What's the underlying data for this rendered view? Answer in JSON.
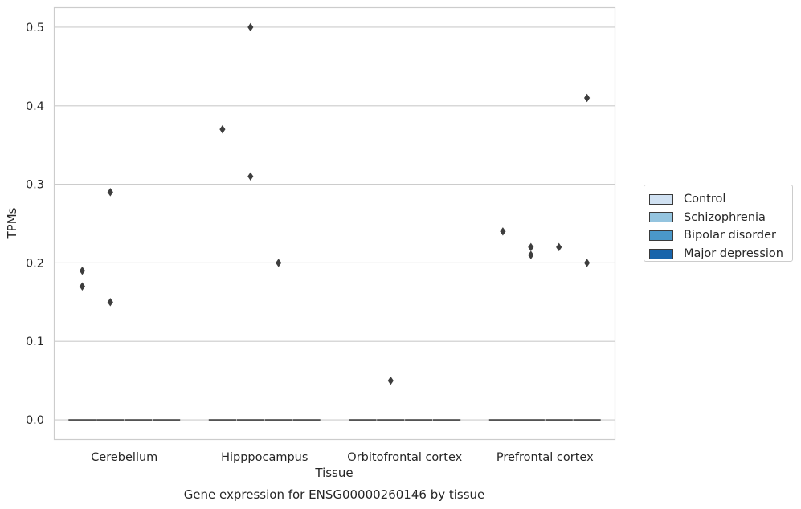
{
  "chart_data": {
    "type": "box",
    "title": "Gene expression for ENSG00000260146 by tissue",
    "xlabel": "Tissue",
    "ylabel": "TPMs",
    "ylim": [
      -0.025,
      0.525
    ],
    "yticks": [
      0.0,
      0.1,
      0.2,
      0.3,
      0.4,
      0.5
    ],
    "ytick_labels": [
      "0.0",
      "0.1",
      "0.2",
      "0.3",
      "0.4",
      "0.5"
    ],
    "grid": true,
    "legend_position": "right",
    "categories": [
      "Cerebellum",
      "Hipppocampus",
      "Orbitofrontal cortex",
      "Prefrontal cortex"
    ],
    "series": [
      {
        "name": "Control",
        "color": "#d0e1f2",
        "median": [
          0,
          0,
          0,
          0
        ],
        "outliers": [
          [
            0.17,
            0.19
          ],
          [
            0.37
          ],
          [],
          [
            0.24
          ]
        ]
      },
      {
        "name": "Schizophrenia",
        "color": "#94c4df",
        "median": [
          0,
          0,
          0,
          0
        ],
        "outliers": [
          [
            0.29,
            0.15
          ],
          [
            0.5,
            0.31
          ],
          [
            0.05
          ],
          [
            0.21,
            0.22
          ]
        ]
      },
      {
        "name": "Bipolar disorder",
        "color": "#4a98c9",
        "median": [
          0,
          0,
          0,
          0
        ],
        "outliers": [
          [],
          [
            0.2
          ],
          [],
          [
            0.22
          ]
        ]
      },
      {
        "name": "Major depression",
        "color": "#1764ab",
        "median": [
          0,
          0,
          0,
          0
        ],
        "outliers": [
          [],
          [],
          [],
          [
            0.41,
            0.2
          ]
        ]
      }
    ]
  }
}
